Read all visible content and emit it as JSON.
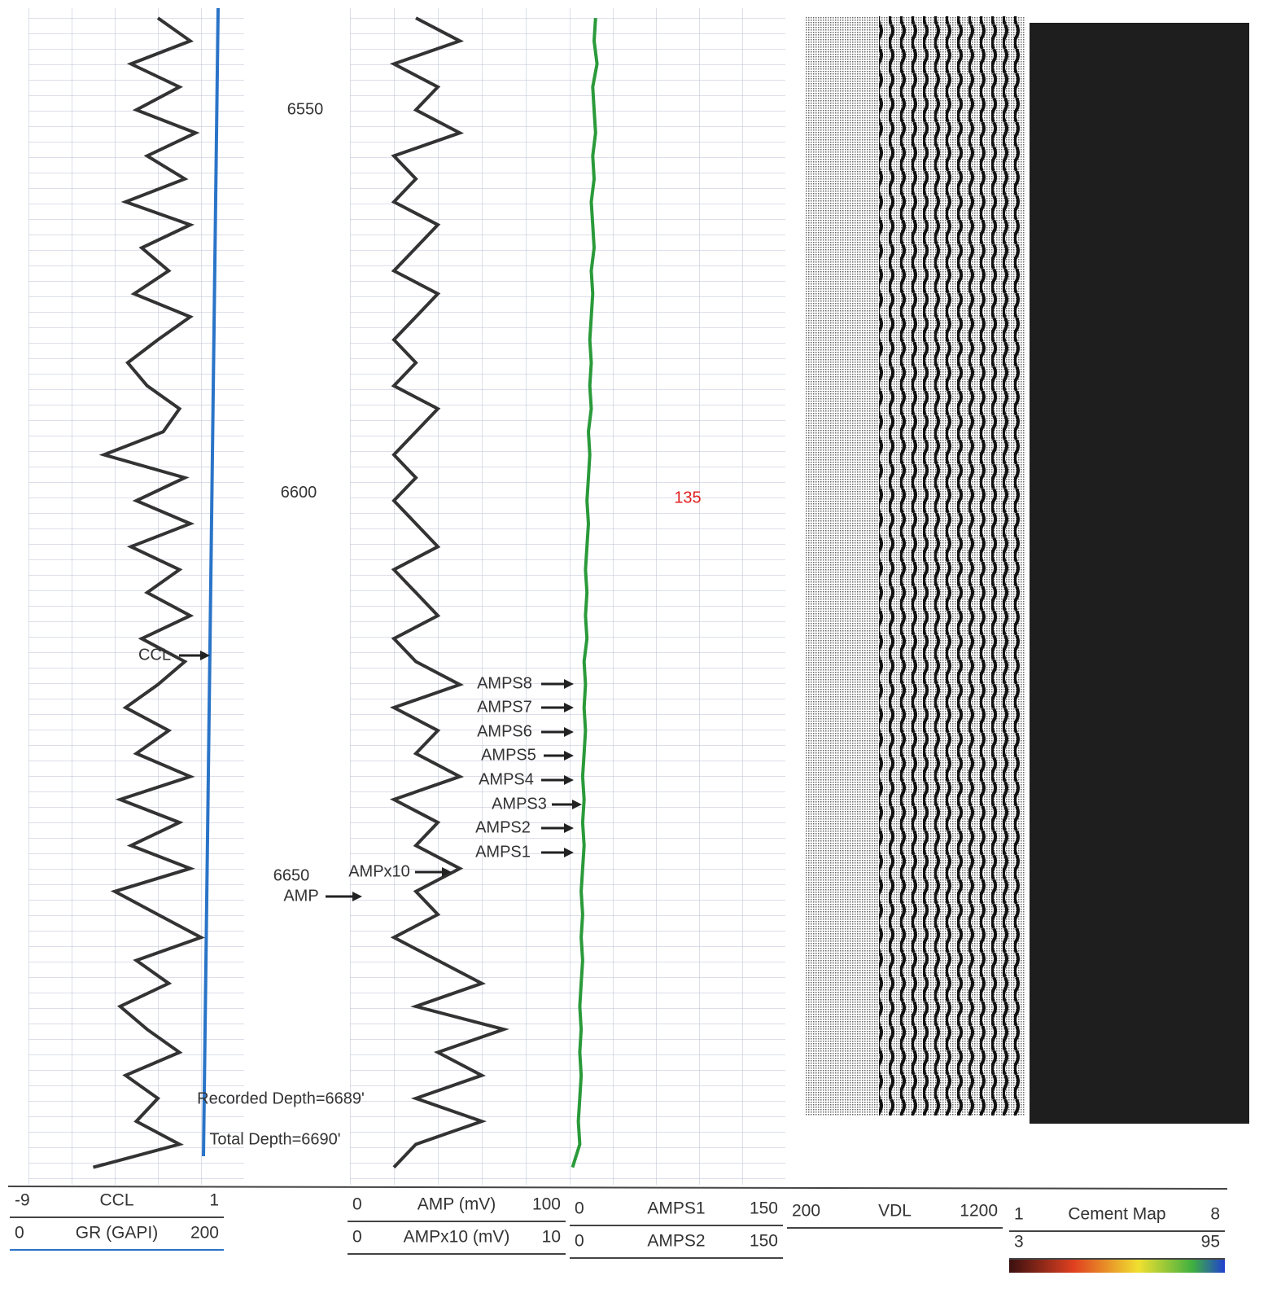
{
  "chart_data": {
    "type": "well-log",
    "depth_labels": [
      6550,
      6600,
      6650
    ],
    "depth": [
      6538,
      6541,
      6544,
      6547,
      6550,
      6553,
      6556,
      6559,
      6562,
      6565,
      6568,
      6571,
      6574,
      6577,
      6580,
      6583,
      6586,
      6589,
      6592,
      6595,
      6598,
      6601,
      6604,
      6607,
      6610,
      6613,
      6616,
      6619,
      6622,
      6625,
      6628,
      6631,
      6634,
      6637,
      6640,
      6643,
      6646,
      6649,
      6652,
      6655,
      6658,
      6661,
      6664,
      6667,
      6670,
      6673,
      6676,
      6679,
      6682,
      6685,
      6688
    ],
    "series": [
      {
        "name": "GR (GAPI)",
        "color": "#333333",
        "track": 0,
        "values": [
          120,
          150,
          95,
          140,
          100,
          155,
          110,
          145,
          90,
          150,
          105,
          130,
          98,
          150,
          120,
          92,
          110,
          140,
          125,
          70,
          145,
          100,
          150,
          95,
          140,
          110,
          150,
          105,
          145,
          120,
          90,
          130,
          100,
          150,
          85,
          140,
          95,
          150,
          80,
          120,
          160,
          100,
          130,
          85,
          110,
          140,
          90,
          120,
          100,
          140,
          60
        ]
      },
      {
        "name": "AMPx10 (mV)",
        "color": "#333333",
        "track": 1,
        "values": [
          3,
          5,
          2,
          4,
          3,
          5,
          2,
          3,
          2,
          4,
          3,
          2,
          4,
          3,
          2,
          3,
          2,
          4,
          3,
          2,
          3,
          2,
          3,
          4,
          2,
          3,
          4,
          2,
          3,
          5,
          2,
          4,
          3,
          5,
          2,
          4,
          3,
          5,
          3,
          4,
          2,
          4,
          6,
          3,
          7,
          4,
          6,
          3,
          6,
          3,
          2
        ]
      },
      {
        "name": "AMPS1",
        "color": "#2a9a3a",
        "track": 2,
        "values": [
          18,
          17,
          19,
          16,
          17,
          18,
          16,
          17,
          15,
          16,
          17,
          15,
          16,
          15,
          14,
          15,
          14,
          15,
          13,
          14,
          13,
          12,
          13,
          12,
          11,
          12,
          11,
          12,
          10,
          11,
          10,
          11,
          10,
          9,
          10,
          9,
          10,
          9,
          8,
          9,
          8,
          9,
          8,
          7,
          8,
          7,
          8,
          7,
          6,
          7,
          2
        ]
      }
    ],
    "annotations": [
      "CCL",
      "AMPS8",
      "AMPS7",
      "AMPS6",
      "AMPS5",
      "AMPS4",
      "AMPS3",
      "AMPS2",
      "AMPS1",
      "AMPx10",
      "AMP",
      "135",
      "Recorded Depth=6689'",
      "Total Depth=6690'"
    ],
    "header": [
      {
        "min": -9,
        "label": "CCL",
        "max": 1
      },
      {
        "min": 0,
        "label": "GR (GAPI)",
        "max": 200
      },
      {
        "min": 0,
        "label": "AMP (mV)",
        "max": 100
      },
      {
        "min": 0,
        "label": "AMPx10 (mV)",
        "max": 10
      },
      {
        "min": 0,
        "label": "AMPS1",
        "max": 150
      },
      {
        "min": 0,
        "label": "AMPS2",
        "max": 150
      },
      {
        "min": 200,
        "label": "VDL",
        "max": 1200
      },
      {
        "min": 1,
        "label": "Cement Map",
        "max": 8
      },
      {
        "min": 3,
        "max": 95
      }
    ]
  }
}
